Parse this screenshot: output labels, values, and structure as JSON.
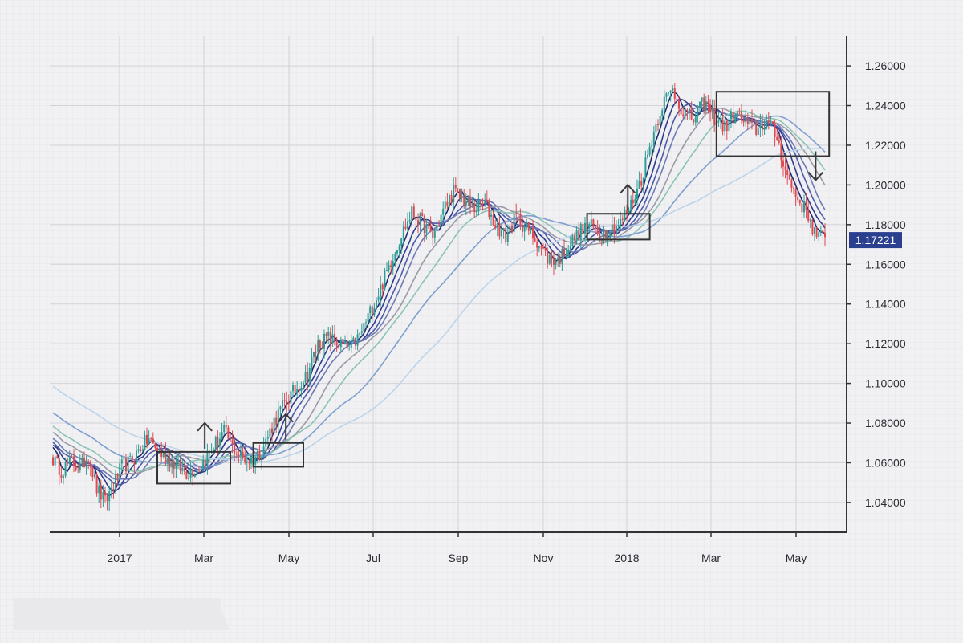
{
  "chart_data": {
    "type": "candlestick",
    "title": "",
    "xlabel": "",
    "ylabel": "",
    "ylim": [
      1.025,
      1.275
    ],
    "y_ticks": [
      "1.04000",
      "1.06000",
      "1.08000",
      "1.10000",
      "1.12000",
      "1.14000",
      "1.16000",
      "1.18000",
      "1.20000",
      "1.22000",
      "1.24000",
      "1.26000"
    ],
    "x_ticks": [
      "2017",
      "Mar",
      "May",
      "Jul",
      "Sep",
      "Nov",
      "2018",
      "Mar",
      "May"
    ],
    "last_price": "1.17221",
    "grid": true,
    "colors": {
      "up": "#2e9b94",
      "down": "#dd4a52",
      "price_tag": "#2b3f8f",
      "box": "#333333",
      "axis": "#333333"
    },
    "price_path": [
      [
        0,
        1.062
      ],
      [
        4,
        1.056
      ],
      [
        9,
        1.061
      ],
      [
        13,
        1.057
      ],
      [
        17,
        1.064
      ],
      [
        21,
        1.047
      ],
      [
        25,
        1.04
      ],
      [
        29,
        1.049
      ],
      [
        33,
        1.058
      ],
      [
        38,
        1.061
      ],
      [
        42,
        1.068
      ],
      [
        46,
        1.072
      ],
      [
        50,
        1.066
      ],
      [
        55,
        1.062
      ],
      [
        60,
        1.058
      ],
      [
        64,
        1.055
      ],
      [
        69,
        1.057
      ],
      [
        73,
        1.062
      ],
      [
        77,
        1.068
      ],
      [
        82,
        1.076
      ],
      [
        86,
        1.068
      ],
      [
        91,
        1.062
      ],
      [
        95,
        1.061
      ],
      [
        100,
        1.066
      ],
      [
        106,
        1.081
      ],
      [
        111,
        1.09
      ],
      [
        117,
        1.098
      ],
      [
        122,
        1.105
      ],
      [
        127,
        1.12
      ],
      [
        132,
        1.123
      ],
      [
        137,
        1.12
      ],
      [
        142,
        1.117
      ],
      [
        147,
        1.124
      ],
      [
        152,
        1.136
      ],
      [
        157,
        1.148
      ],
      [
        162,
        1.162
      ],
      [
        167,
        1.175
      ],
      [
        172,
        1.186
      ],
      [
        177,
        1.181
      ],
      [
        182,
        1.174
      ],
      [
        187,
        1.187
      ],
      [
        192,
        1.197
      ],
      [
        197,
        1.192
      ],
      [
        202,
        1.188
      ],
      [
        207,
        1.191
      ],
      [
        212,
        1.18
      ],
      [
        217,
        1.174
      ],
      [
        222,
        1.184
      ],
      [
        227,
        1.178
      ],
      [
        232,
        1.172
      ],
      [
        237,
        1.163
      ],
      [
        242,
        1.162
      ],
      [
        247,
        1.169
      ],
      [
        252,
        1.176
      ],
      [
        257,
        1.18
      ],
      [
        262,
        1.175
      ],
      [
        267,
        1.178
      ],
      [
        272,
        1.181
      ],
      [
        277,
        1.19
      ],
      [
        282,
        1.203
      ],
      [
        287,
        1.223
      ],
      [
        292,
        1.241
      ],
      [
        297,
        1.248
      ],
      [
        302,
        1.237
      ],
      [
        307,
        1.233
      ],
      [
        312,
        1.242
      ],
      [
        317,
        1.234
      ],
      [
        322,
        1.229
      ],
      [
        327,
        1.236
      ],
      [
        332,
        1.231
      ],
      [
        337,
        1.228
      ],
      [
        342,
        1.232
      ],
      [
        347,
        1.224
      ],
      [
        352,
        1.204
      ],
      [
        357,
        1.193
      ],
      [
        362,
        1.185
      ],
      [
        365,
        1.176
      ],
      [
        370,
        1.172
      ]
    ],
    "moving_averages": [
      {
        "period": 5,
        "color": "#1d2a6b"
      },
      {
        "period": 10,
        "color": "#2d3b8c"
      },
      {
        "period": 15,
        "color": "#4d5aa6"
      },
      {
        "period": 20,
        "color": "#6d7ab5"
      },
      {
        "period": 30,
        "color": "#9a9aa6"
      },
      {
        "period": 40,
        "color": "#8bc3b3"
      },
      {
        "period": 60,
        "color": "#7e9fcf"
      },
      {
        "period": 100,
        "color": "#bcd4ea"
      }
    ],
    "moving_average_lead_in": [
      1.135,
      1.125,
      1.118,
      1.11,
      1.102,
      1.094,
      1.085,
      1.078,
      1.07
    ],
    "boxes": [
      {
        "x_range": [
          50,
          85
        ],
        "y_range": [
          1.0495,
          1.0655
        ],
        "arrow": "up"
      },
      {
        "x_range": [
          96,
          120
        ],
        "y_range": [
          1.058,
          1.07
        ],
        "arrow": "up"
      },
      {
        "x_range": [
          256,
          286
        ],
        "y_range": [
          1.1725,
          1.1855
        ],
        "arrow": "up"
      },
      {
        "x_range": [
          318,
          372
        ],
        "y_range": [
          1.2145,
          1.247
        ],
        "arrow": "down"
      }
    ]
  }
}
